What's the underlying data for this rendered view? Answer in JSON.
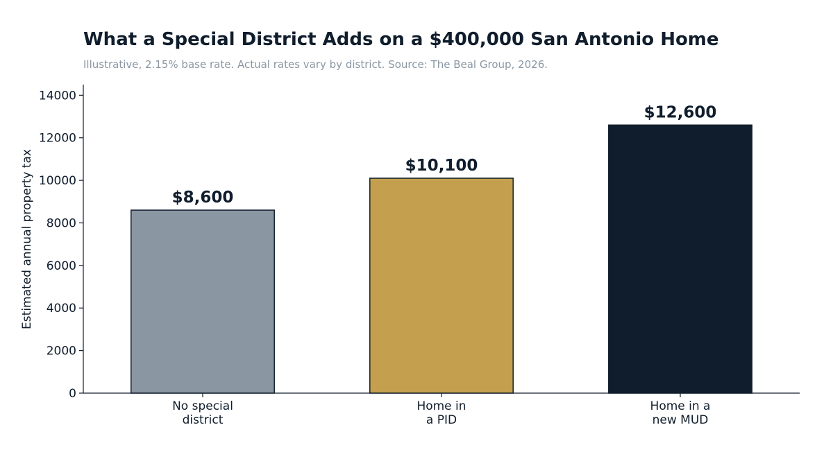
{
  "title": "What a Special District Adds on a $400,000 San Antonio Home",
  "subtitle": "Illustrative, 2.15% base rate. Actual rates vary by district. Source: The Beal Group, 2026.",
  "colors": {
    "text": "#101d2c",
    "subtitle": "#8a97a3",
    "bar_outline": "#101d2c"
  },
  "chart_data": {
    "type": "bar",
    "categories": [
      [
        "No special",
        "district"
      ],
      [
        "Home in",
        "a PID"
      ],
      [
        "Home in a",
        "new MUD"
      ]
    ],
    "values": [
      8600,
      10100,
      12600
    ],
    "data_labels": [
      "$8,600",
      "$10,100",
      "$12,600"
    ],
    "bar_colors": [
      "#8a97a3",
      "#c4a04e",
      "#101d2c"
    ],
    "xlabel": "",
    "ylabel": "Estimated annual property tax",
    "ylim": [
      0,
      14500
    ],
    "yticks": [
      0,
      2000,
      4000,
      6000,
      8000,
      10000,
      12000,
      14000
    ],
    "grid": false,
    "legend": "none"
  }
}
